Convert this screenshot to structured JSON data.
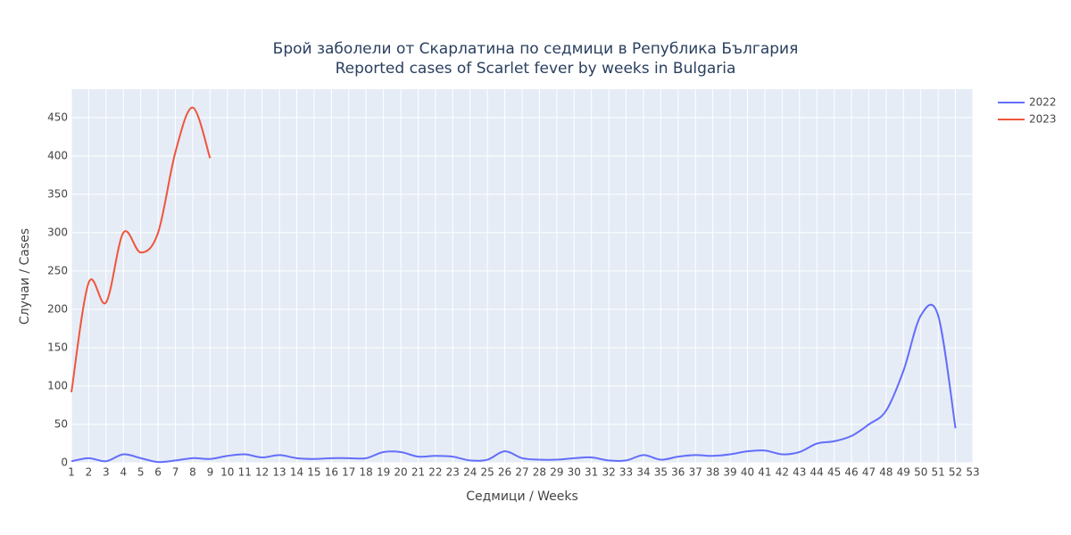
{
  "chart_data": {
    "type": "line",
    "title": "Брой заболели от Скарлатина по седмици в Република България",
    "subtitle": "Reported cases of Scarlet fever by weeks in Bulgaria",
    "x_label": "Седмици / Weeks",
    "y_label": "Случаи / Cases",
    "x": [
      1,
      2,
      3,
      4,
      5,
      6,
      7,
      8,
      9,
      10,
      11,
      12,
      13,
      14,
      15,
      16,
      17,
      18,
      19,
      20,
      21,
      22,
      23,
      24,
      25,
      26,
      27,
      28,
      29,
      30,
      31,
      32,
      33,
      34,
      35,
      36,
      37,
      38,
      39,
      40,
      41,
      42,
      43,
      44,
      45,
      46,
      47,
      48,
      49,
      50,
      51,
      52
    ],
    "series": [
      {
        "name": "2022",
        "color": "#636efa",
        "values": [
          2,
          6,
          2,
          11,
          6,
          1,
          3,
          6,
          5,
          9,
          11,
          7,
          10,
          6,
          5,
          6,
          6,
          6,
          14,
          14,
          8,
          9,
          8,
          3,
          4,
          15,
          6,
          4,
          4,
          6,
          7,
          3,
          3,
          10,
          4,
          8,
          10,
          9,
          11,
          15,
          16,
          11,
          14,
          25,
          28,
          35,
          50,
          68,
          120,
          192,
          192,
          45
        ]
      },
      {
        "name": "2023",
        "color": "#ef553b",
        "values": [
          92,
          235,
          209,
          300,
          274,
          300,
          405,
          463,
          397,
          null,
          null,
          null,
          null,
          null,
          null,
          null,
          null,
          null,
          null,
          null,
          null,
          null,
          null,
          null,
          null,
          null,
          null,
          null,
          null,
          null,
          null,
          null,
          null,
          null,
          null,
          null,
          null,
          null,
          null,
          null,
          null,
          null,
          null,
          null,
          null,
          null,
          null,
          null,
          null,
          null,
          null,
          null
        ]
      }
    ],
    "xlim": [
      1,
      53
    ],
    "xticks": [
      1,
      2,
      3,
      4,
      5,
      6,
      7,
      8,
      9,
      10,
      11,
      12,
      13,
      14,
      15,
      16,
      17,
      18,
      19,
      20,
      21,
      22,
      23,
      24,
      25,
      26,
      27,
      28,
      29,
      30,
      31,
      32,
      33,
      34,
      35,
      36,
      37,
      38,
      39,
      40,
      41,
      42,
      43,
      44,
      45,
      46,
      47,
      48,
      49,
      50,
      51,
      52,
      53
    ],
    "ylim": [
      0,
      487
    ],
    "yticks": [
      0,
      50,
      100,
      150,
      200,
      250,
      300,
      350,
      400,
      450
    ],
    "grid": true,
    "legend": "right"
  }
}
